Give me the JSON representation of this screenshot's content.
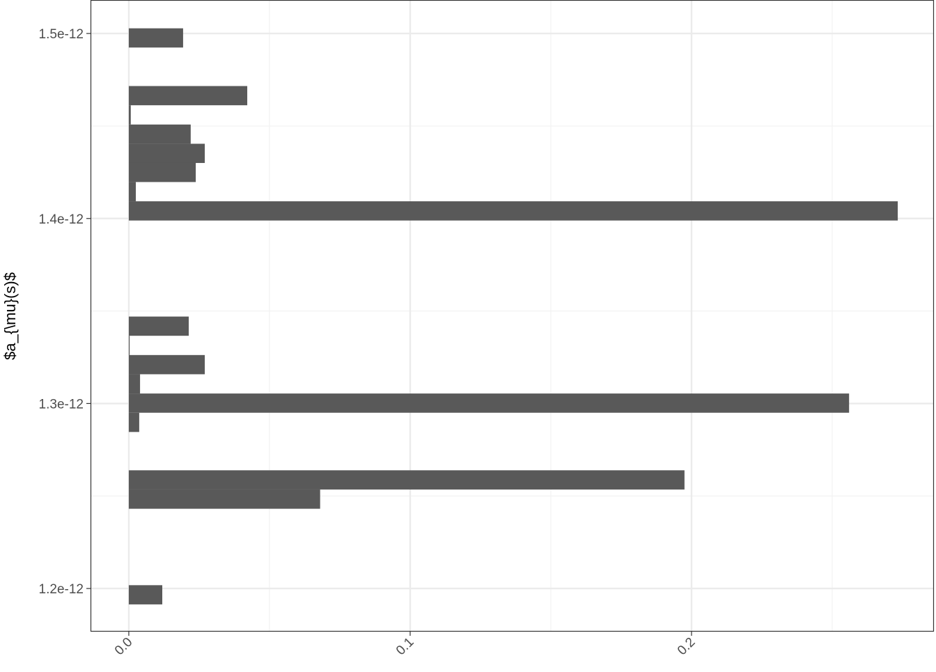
{
  "chart_data": {
    "type": "bar",
    "orientation": "horizontal",
    "title": "",
    "xlabel": "",
    "ylabel": "$a_{\\mu}(s)$",
    "xlim": [
      -0.0136,
      0.2859
    ],
    "ylim": [
      1.1767e-12,
      1.5181e-12
    ],
    "x_ticks": [
      0.0,
      0.1,
      0.2
    ],
    "x_tick_labels": [
      "0.0",
      "0.1",
      "0.2"
    ],
    "y_ticks": [
      1.2e-12,
      1.3e-12,
      1.4e-12,
      1.5e-12
    ],
    "y_tick_labels": [
      "1.2e-12",
      "1.3e-12",
      "1.4e-12",
      "1.5e-12"
    ],
    "grid": true,
    "bar_color": "#595959",
    "bin_width": 1.039e-14,
    "bins": [
      {
        "y": 1.4976e-12,
        "value": 0.0193
      },
      {
        "y": 1.4872e-12,
        "value": 0
      },
      {
        "y": 1.4768e-12,
        "value": 0
      },
      {
        "y": 1.4664e-12,
        "value": 0.0421
      },
      {
        "y": 1.456e-12,
        "value": 0.0007
      },
      {
        "y": 1.4456e-12,
        "value": 0.022
      },
      {
        "y": 1.4352e-12,
        "value": 0.027
      },
      {
        "y": 1.4249e-12,
        "value": 0.0238
      },
      {
        "y": 1.4145e-12,
        "value": 0.0025
      },
      {
        "y": 1.4041e-12,
        "value": 0.2733
      },
      {
        "y": 1.3937e-12,
        "value": 0
      },
      {
        "y": 1.3833e-12,
        "value": 0
      },
      {
        "y": 1.3729e-12,
        "value": 0
      },
      {
        "y": 1.3625e-12,
        "value": 0
      },
      {
        "y": 1.3521e-12,
        "value": 0
      },
      {
        "y": 1.3418e-12,
        "value": 0.0213
      },
      {
        "y": 1.3314e-12,
        "value": 0.0003
      },
      {
        "y": 1.321e-12,
        "value": 0.027
      },
      {
        "y": 1.3106e-12,
        "value": 0.004
      },
      {
        "y": 1.3002e-12,
        "value": 0.256
      },
      {
        "y": 1.2898e-12,
        "value": 0.0037
      },
      {
        "y": 1.2794e-12,
        "value": 0
      },
      {
        "y": 1.2691e-12,
        "value": 0
      },
      {
        "y": 1.2587e-12,
        "value": 0.1975
      },
      {
        "y": 1.2483e-12,
        "value": 0.068
      },
      {
        "y": 1.2379e-12,
        "value": 0
      },
      {
        "y": 1.2275e-12,
        "value": 0
      },
      {
        "y": 1.2171e-12,
        "value": 0
      },
      {
        "y": 1.2067e-12,
        "value": 0
      },
      {
        "y": 1.1966e-12,
        "value": 0.0119
      }
    ]
  }
}
